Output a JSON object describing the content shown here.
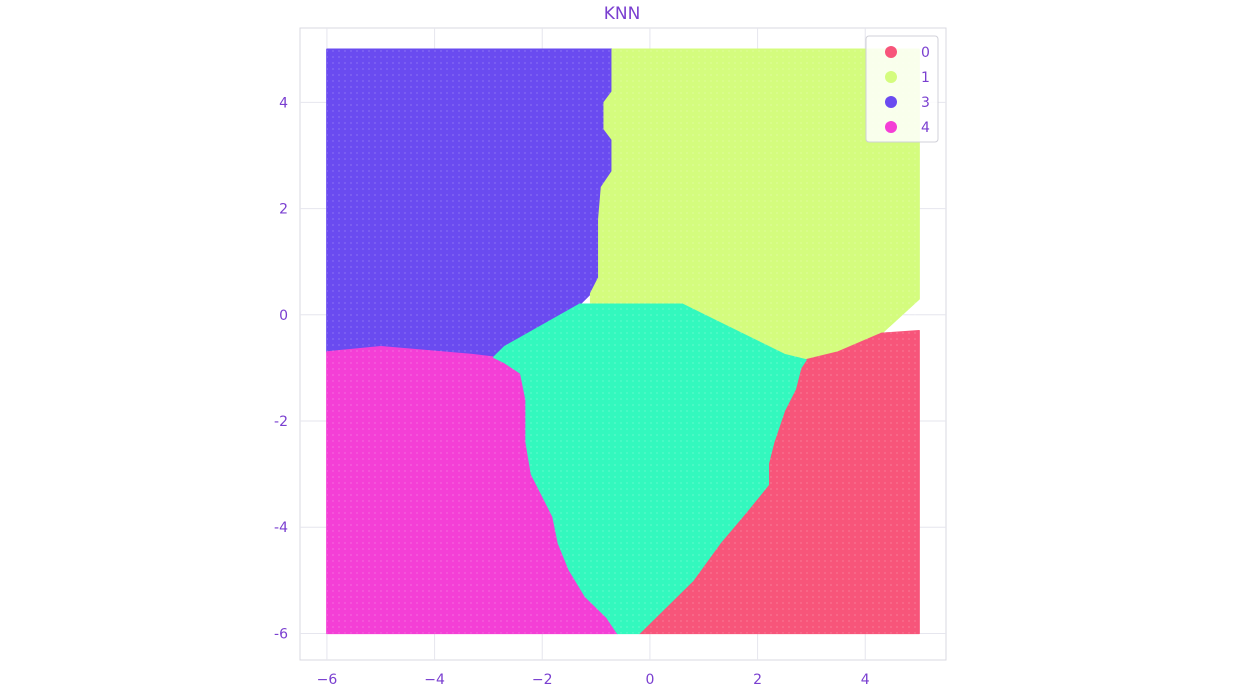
{
  "chart_data": {
    "type": "scatter",
    "title": "KNN",
    "xlabel": "",
    "ylabel": "",
    "xlim": [
      -6.5,
      5.5
    ],
    "ylim": [
      -6.5,
      5.4
    ],
    "xticks": [
      -6,
      -4,
      -2,
      0,
      2,
      4
    ],
    "yticks": [
      -6,
      -4,
      -2,
      0,
      2,
      4
    ],
    "xtick_labels": [
      "−6",
      "−4",
      "−2",
      "0",
      "2",
      "4"
    ],
    "ytick_labels": [
      "-6",
      "-4",
      "-2",
      "0",
      "2",
      "4"
    ],
    "grid": true,
    "legend_position": "top-right",
    "data_extent": {
      "x": [
        -6,
        5
      ],
      "y": [
        -6,
        5
      ]
    },
    "series": [
      {
        "name": "0",
        "color": "#f7557a"
      },
      {
        "name": "1",
        "color": "#d4fc7e"
      },
      {
        "name": "3",
        "color": "#6a4bf0"
      },
      {
        "name": "4",
        "color": "#f43fd6"
      }
    ],
    "unlabeled_region_color": "#33f8be",
    "regions": [
      {
        "color": "#6a4bf0",
        "points": [
          [
            -6,
            5
          ],
          [
            -0.7,
            5
          ],
          [
            -0.7,
            4.2
          ],
          [
            -0.85,
            4.0
          ],
          [
            -0.85,
            3.5
          ],
          [
            -0.7,
            3.3
          ],
          [
            -0.7,
            2.7
          ],
          [
            -0.9,
            2.4
          ],
          [
            -0.95,
            1.8
          ],
          [
            -0.95,
            0.7
          ],
          [
            -1.1,
            0.4
          ],
          [
            -1.3,
            0.2
          ],
          [
            -2.0,
            -0.2
          ],
          [
            -2.7,
            -0.6
          ],
          [
            -2.9,
            -0.8
          ],
          [
            -3.3,
            -0.75
          ],
          [
            -5.0,
            -0.6
          ],
          [
            -6,
            -0.7
          ]
        ]
      },
      {
        "color": "#d4fc7e",
        "points": [
          [
            -0.7,
            5
          ],
          [
            5,
            5
          ],
          [
            5,
            0.3
          ],
          [
            4.3,
            -0.35
          ],
          [
            3.5,
            -0.7
          ],
          [
            2.9,
            -0.85
          ],
          [
            2.5,
            -0.75
          ],
          [
            2.0,
            -0.5
          ],
          [
            1.4,
            -0.2
          ],
          [
            0.6,
            0.2
          ],
          [
            0,
            0.2
          ],
          [
            -1.1,
            0.2
          ],
          [
            -1.1,
            0.4
          ],
          [
            -0.95,
            0.7
          ],
          [
            -0.95,
            1.8
          ],
          [
            -0.9,
            2.4
          ],
          [
            -0.7,
            2.7
          ],
          [
            -0.7,
            3.3
          ],
          [
            -0.85,
            3.5
          ],
          [
            -0.85,
            4.0
          ],
          [
            -0.7,
            4.2
          ]
        ]
      },
      {
        "color": "#f7557a",
        "points": [
          [
            2.9,
            -0.85
          ],
          [
            3.5,
            -0.7
          ],
          [
            4.3,
            -0.35
          ],
          [
            5,
            -0.3
          ],
          [
            5,
            -6
          ],
          [
            -0.2,
            -6
          ],
          [
            0.3,
            -5.5
          ],
          [
            0.8,
            -5.0
          ],
          [
            1.3,
            -4.3
          ],
          [
            1.8,
            -3.7
          ],
          [
            2.2,
            -3.2
          ],
          [
            2.2,
            -2.8
          ],
          [
            2.3,
            -2.4
          ],
          [
            2.5,
            -1.8
          ],
          [
            2.7,
            -1.4
          ],
          [
            2.8,
            -1.0
          ]
        ]
      },
      {
        "color": "#f43fd6",
        "points": [
          [
            -6,
            -0.7
          ],
          [
            -5.0,
            -0.6
          ],
          [
            -3.3,
            -0.75
          ],
          [
            -2.9,
            -0.8
          ],
          [
            -2.7,
            -0.9
          ],
          [
            -2.4,
            -1.1
          ],
          [
            -2.3,
            -1.6
          ],
          [
            -2.3,
            -2.4
          ],
          [
            -2.2,
            -3.0
          ],
          [
            -2.0,
            -3.4
          ],
          [
            -1.8,
            -3.8
          ],
          [
            -1.7,
            -4.3
          ],
          [
            -1.5,
            -4.8
          ],
          [
            -1.2,
            -5.3
          ],
          [
            -0.8,
            -5.7
          ],
          [
            -0.6,
            -6
          ],
          [
            -6,
            -6
          ]
        ]
      },
      {
        "color": "#33f8be",
        "points": [
          [
            -1.1,
            0.2
          ],
          [
            0,
            0.2
          ],
          [
            0.6,
            0.2
          ],
          [
            1.4,
            -0.2
          ],
          [
            2.0,
            -0.5
          ],
          [
            2.5,
            -0.75
          ],
          [
            2.9,
            -0.85
          ],
          [
            2.8,
            -1.0
          ],
          [
            2.7,
            -1.4
          ],
          [
            2.5,
            -1.8
          ],
          [
            2.3,
            -2.4
          ],
          [
            2.2,
            -2.8
          ],
          [
            2.2,
            -3.2
          ],
          [
            1.8,
            -3.7
          ],
          [
            1.3,
            -4.3
          ],
          [
            0.8,
            -5.0
          ],
          [
            0.3,
            -5.5
          ],
          [
            -0.2,
            -6
          ],
          [
            -0.6,
            -6
          ],
          [
            -0.8,
            -5.7
          ],
          [
            -1.2,
            -5.3
          ],
          [
            -1.5,
            -4.8
          ],
          [
            -1.7,
            -4.3
          ],
          [
            -1.8,
            -3.8
          ],
          [
            -2.0,
            -3.4
          ],
          [
            -2.2,
            -3.0
          ],
          [
            -2.3,
            -2.4
          ],
          [
            -2.3,
            -1.6
          ],
          [
            -2.4,
            -1.1
          ],
          [
            -2.7,
            -0.9
          ],
          [
            -2.9,
            -0.8
          ],
          [
            -2.7,
            -0.6
          ],
          [
            -2.0,
            -0.2
          ],
          [
            -1.3,
            0.2
          ]
        ]
      }
    ]
  }
}
